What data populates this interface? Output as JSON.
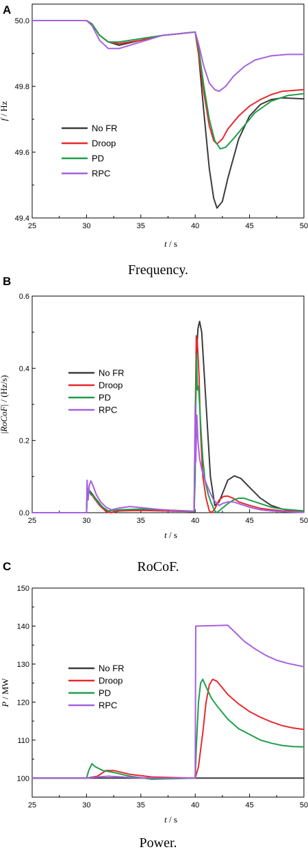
{
  "legend": [
    "No FR",
    "Droop",
    "PD",
    "RPC"
  ],
  "colors": {
    "No FR": "#3a3a3a",
    "Droop": "#e8282d",
    "PD": "#1e9e4a",
    "RPC": "#a560e0"
  },
  "chart_data": [
    {
      "panel": "A",
      "caption": "Frequency.",
      "type": "line",
      "xlabel_var": "t",
      "xlabel_unit": " / s",
      "ylabel_var": "f",
      "ylabel_unit": " / Hz",
      "xlim": [
        25,
        50
      ],
      "ylim": [
        49.4,
        50.05
      ],
      "xticks": [
        25,
        30,
        35,
        40,
        45,
        50
      ],
      "yticks": [
        49.4,
        49.6,
        49.8,
        50.0
      ],
      "ytick_labels": [
        "49.4",
        "49.6",
        "49.8",
        "50.0"
      ],
      "legend_position": "left",
      "series": [
        {
          "name": "No FR",
          "x": [
            25,
            30,
            30.5,
            31.2,
            32,
            33,
            35,
            37,
            40,
            40.3,
            40.8,
            41.3,
            41.7,
            42,
            42.5,
            43,
            44,
            45,
            46,
            47,
            48,
            50
          ],
          "y": [
            50.0,
            50.0,
            49.99,
            49.955,
            49.935,
            49.925,
            49.94,
            49.955,
            49.965,
            49.9,
            49.72,
            49.55,
            49.46,
            49.43,
            49.45,
            49.52,
            49.64,
            49.71,
            49.745,
            49.76,
            49.765,
            49.762
          ]
        },
        {
          "name": "Droop",
          "x": [
            25,
            30,
            30.5,
            31.2,
            32,
            33,
            35,
            37,
            40,
            40.3,
            40.8,
            41.3,
            41.7,
            42,
            42.5,
            43,
            44,
            45,
            46,
            47,
            48,
            50
          ],
          "y": [
            50.0,
            50.0,
            49.99,
            49.955,
            49.935,
            49.93,
            49.94,
            49.955,
            49.965,
            49.9,
            49.78,
            49.68,
            49.635,
            49.625,
            49.64,
            49.67,
            49.71,
            49.74,
            49.76,
            49.775,
            49.785,
            49.79
          ]
        },
        {
          "name": "PD",
          "x": [
            25,
            30,
            30.5,
            31.2,
            32,
            33,
            35,
            37,
            40,
            40.3,
            40.8,
            41.3,
            41.8,
            42.3,
            42.8,
            43.5,
            44.5,
            45.5,
            47,
            48.5,
            50
          ],
          "y": [
            50.0,
            50.0,
            49.99,
            49.955,
            49.935,
            49.935,
            49.945,
            49.955,
            49.965,
            49.92,
            49.8,
            49.7,
            49.635,
            49.61,
            49.615,
            49.64,
            49.68,
            49.72,
            49.755,
            49.772,
            49.778
          ]
        },
        {
          "name": "RPC",
          "x": [
            25,
            30,
            30.5,
            31.2,
            32,
            33,
            35,
            37,
            40,
            40.3,
            40.8,
            41.3,
            41.8,
            42.2,
            42.8,
            43.5,
            44.5,
            45.5,
            47,
            48.5,
            50
          ],
          "y": [
            50.0,
            50.0,
            49.985,
            49.94,
            49.915,
            49.915,
            49.935,
            49.955,
            49.965,
            49.93,
            49.86,
            49.81,
            49.79,
            49.785,
            49.8,
            49.83,
            49.86,
            49.88,
            49.893,
            49.897,
            49.897
          ]
        }
      ]
    },
    {
      "panel": "B",
      "caption": "RoCoF.",
      "type": "line",
      "xlabel_var": "t",
      "xlabel_unit": " / s",
      "ylabel_prefix": "|",
      "ylabel_var": "RoCoF",
      "ylabel_unit": "| / (Hz/s)",
      "xlim": [
        25,
        50
      ],
      "ylim": [
        0,
        0.6
      ],
      "xticks": [
        25,
        30,
        35,
        40,
        45,
        50
      ],
      "yticks": [
        0.0,
        0.2,
        0.4,
        0.6
      ],
      "ytick_labels": [
        "0.0",
        "0.2",
        "0.4",
        "0.6"
      ],
      "legend_position": "left",
      "series": [
        {
          "name": "No FR",
          "x": [
            25,
            30,
            30.05,
            30.3,
            30.7,
            31.2,
            31.8,
            32.3,
            33,
            35,
            37,
            39.9,
            40,
            40.1,
            40.25,
            40.4,
            40.6,
            41,
            41.4,
            41.8,
            42.2,
            42.6,
            43,
            43.6,
            44.2,
            45,
            46,
            47,
            48,
            49,
            50
          ],
          "y": [
            0,
            0,
            0.045,
            0.06,
            0.045,
            0.025,
            0.005,
            0,
            0.005,
            0.008,
            0.006,
            0.003,
            0.2,
            0.42,
            0.51,
            0.53,
            0.5,
            0.3,
            0.1,
            0.02,
            0.03,
            0.06,
            0.09,
            0.102,
            0.095,
            0.07,
            0.04,
            0.02,
            0.01,
            0.005,
            0.002
          ]
        },
        {
          "name": "Droop",
          "x": [
            25,
            30,
            30.05,
            30.3,
            30.7,
            31.2,
            31.8,
            32.2,
            33,
            35,
            37,
            39.9,
            40,
            40.1,
            40.2,
            40.35,
            40.5,
            40.7,
            41,
            41.3,
            41.5,
            41.8,
            42.2,
            42.6,
            43,
            43.5,
            44,
            45,
            46,
            47,
            48,
            50
          ],
          "y": [
            0,
            0,
            0.045,
            0.058,
            0.04,
            0.02,
            0.003,
            0,
            0.005,
            0.006,
            0.005,
            0.003,
            0.25,
            0.49,
            0.47,
            0.38,
            0.22,
            0.1,
            0.04,
            0.005,
            0,
            0.01,
            0.035,
            0.045,
            0.046,
            0.04,
            0.03,
            0.02,
            0.012,
            0.008,
            0.005,
            0.003
          ]
        },
        {
          "name": "PD",
          "x": [
            25,
            30,
            30.05,
            30.2,
            30.4,
            30.7,
            31,
            31.5,
            32,
            33,
            35,
            37,
            39.9,
            40,
            40.05,
            40.12,
            40.2,
            40.3,
            40.4,
            40.55,
            40.7,
            40.9,
            41.2,
            41.5,
            41.8,
            42,
            42.2,
            42.6,
            43,
            43.5,
            44,
            44.5,
            45,
            46,
            47,
            48,
            50
          ],
          "y": [
            0,
            0,
            0.04,
            0.065,
            0.05,
            0.045,
            0.03,
            0.015,
            0.005,
            0.008,
            0.01,
            0.008,
            0.004,
            0.1,
            0.3,
            0.44,
            0.34,
            0.35,
            0.3,
            0.22,
            0.15,
            0.09,
            0.05,
            0.025,
            0.005,
            0,
            0.005,
            0.015,
            0.025,
            0.035,
            0.04,
            0.04,
            0.035,
            0.025,
            0.015,
            0.01,
            0.005
          ]
        },
        {
          "name": "RPC",
          "x": [
            25,
            30,
            30.05,
            30.15,
            30.25,
            30.4,
            30.6,
            30.9,
            31.3,
            31.8,
            32.3,
            33,
            34,
            35,
            37,
            39.9,
            40,
            40.05,
            40.15,
            40.25,
            40.4,
            40.6,
            40.9,
            41.3,
            41.7,
            42.2,
            42.5,
            43,
            43.5,
            44,
            45,
            46,
            47,
            48,
            50
          ],
          "y": [
            0,
            0,
            0.09,
            0.035,
            0.075,
            0.088,
            0.075,
            0.05,
            0.03,
            0.015,
            0.008,
            0.013,
            0.017,
            0.014,
            0.008,
            0.003,
            0.3,
            0.14,
            0.27,
            0.2,
            0.15,
            0.12,
            0.09,
            0.06,
            0.035,
            0.02,
            0.025,
            0.03,
            0.03,
            0.025,
            0.015,
            0.008,
            0.005,
            0.003,
            0.001
          ]
        }
      ]
    },
    {
      "panel": "C",
      "caption": "Power.",
      "type": "line",
      "xlabel_var": "t",
      "xlabel_unit": " / s",
      "ylabel_var": "P",
      "ylabel_unit": " / MW",
      "xlim": [
        25,
        50
      ],
      "ylim": [
        95,
        150
      ],
      "xticks": [
        25,
        30,
        35,
        40,
        45,
        50
      ],
      "yticks": [
        100,
        110,
        120,
        130,
        140,
        150
      ],
      "ytick_labels": [
        "100",
        "110",
        "120",
        "130",
        "140",
        "150"
      ],
      "legend_position": "left",
      "series": [
        {
          "name": "No FR",
          "x": [
            25,
            50
          ],
          "y": [
            100,
            100
          ]
        },
        {
          "name": "Droop",
          "x": [
            25,
            30,
            31,
            31.8,
            32.5,
            34,
            36,
            40,
            40.3,
            40.7,
            41,
            41.3,
            41.6,
            42,
            43,
            44,
            45,
            46,
            47,
            48,
            49,
            50
          ],
          "y": [
            100,
            100,
            100.5,
            102,
            102,
            101,
            100.3,
            100,
            103,
            112,
            120,
            124.5,
            126,
            125.5,
            122,
            119.5,
            117.5,
            116,
            114.8,
            113.8,
            113.2,
            112.8
          ]
        },
        {
          "name": "PD",
          "x": [
            25,
            30,
            30.2,
            30.5,
            30.8,
            31.5,
            32.5,
            34,
            36,
            40,
            40.1,
            40.3,
            40.5,
            40.7,
            41,
            41.5,
            42,
            43,
            44,
            45,
            46,
            47,
            48,
            49,
            50
          ],
          "y": [
            100,
            100,
            102,
            103.8,
            103,
            102,
            101.5,
            100.5,
            99.7,
            100,
            108,
            120,
            125,
            126,
            124,
            121,
            119,
            115.5,
            113,
            111.5,
            110,
            109.2,
            108.6,
            108.3,
            108.2
          ]
        },
        {
          "name": "RPC",
          "x": [
            25,
            30,
            31,
            32,
            34,
            36,
            40,
            40.05,
            43,
            43.8,
            44.5,
            45.5,
            46.5,
            47.5,
            48.5,
            50
          ],
          "y": [
            100,
            100,
            100.3,
            100.5,
            100.2,
            100,
            100,
            140,
            140.2,
            138,
            136,
            134,
            132.3,
            131,
            130.2,
            129.3
          ]
        }
      ]
    }
  ]
}
